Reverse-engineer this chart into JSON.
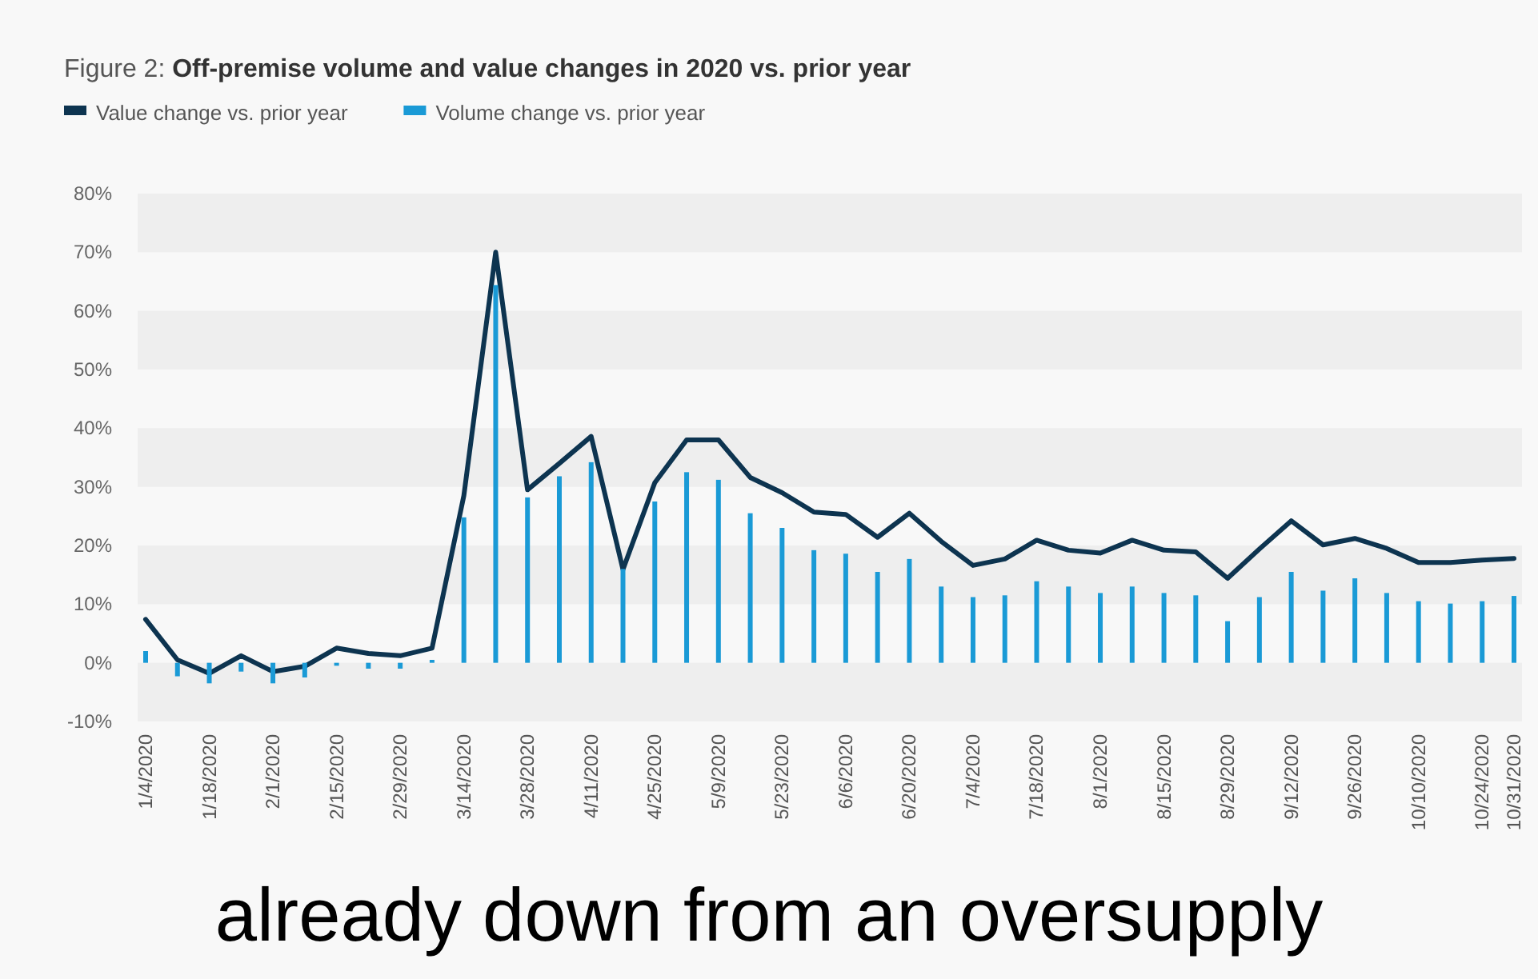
{
  "chart_data": {
    "type": "bar",
    "title": "Figure 2: Off-premise volume and value changes in 2020 vs. prior year",
    "categories": [
      "1/4/2020",
      null,
      "1/18/2020",
      null,
      "2/1/2020",
      null,
      "2/15/2020",
      null,
      "2/29/2020",
      null,
      "3/14/2020",
      null,
      "3/28/2020",
      null,
      "4/11/2020",
      null,
      "4/25/2020",
      null,
      "5/9/2020",
      null,
      "5/23/2020",
      null,
      "6/6/2020",
      null,
      "6/20/2020",
      null,
      "7/4/2020",
      null,
      "7/18/2020",
      null,
      "8/1/2020",
      null,
      "8/15/2020",
      null,
      "8/29/2020",
      null,
      "9/12/2020",
      null,
      "9/26/2020",
      null,
      "10/10/2020",
      null,
      "10/24/2020",
      "10/31/2020"
    ],
    "series": [
      {
        "name": "Value change vs. prior year",
        "type": "line",
        "color": "#0d3450",
        "values": [
          7.4,
          0.5,
          -1.8,
          1.2,
          -1.5,
          -0.6,
          2.5,
          1.6,
          1.2,
          2.5,
          28.5,
          70,
          29.5,
          34,
          38.6,
          15.9,
          30.7,
          38,
          38,
          31.6,
          29,
          25.7,
          25.3,
          21.4,
          25.5,
          20.7,
          16.6,
          17.7,
          20.9,
          19.2,
          18.7,
          20.9,
          19.2,
          18.9,
          14.4,
          19.4,
          24.2,
          20.1,
          21.2,
          19.5,
          17.1,
          17.1,
          17.5,
          17.8
        ]
      },
      {
        "name": "Volume change vs. prior year",
        "color": "#1a9ad6",
        "values": [
          2,
          -2.3,
          -3.5,
          -1.5,
          -3.5,
          -2.5,
          -0.5,
          -1,
          -1,
          0.5,
          24.8,
          64.4,
          28.2,
          31.8,
          34.2,
          16,
          27.5,
          32.5,
          31.2,
          25.5,
          23,
          19.2,
          18.6,
          15.5,
          17.7,
          13,
          11.2,
          11.5,
          13.9,
          13,
          11.9,
          13,
          11.9,
          11.5,
          7.1,
          11.2,
          15.5,
          12.3,
          14.4,
          11.9,
          10.5,
          10.1,
          10.5,
          11.4
        ]
      }
    ],
    "ylim": [
      -10,
      80
    ],
    "yticks": [
      {
        "value": -10,
        "label": "-10%"
      },
      {
        "value": 0,
        "label": "0%"
      },
      {
        "value": 10,
        "label": "10%"
      },
      {
        "value": 20,
        "label": "20%"
      },
      {
        "value": 30,
        "label": "30%"
      },
      {
        "value": 40,
        "label": "40%"
      },
      {
        "value": 50,
        "label": "50%"
      },
      {
        "value": 60,
        "label": "60%"
      },
      {
        "value": 70,
        "label": "70%"
      },
      {
        "value": 80,
        "label": "80%"
      }
    ],
    "legend": "top left",
    "marker": "none",
    "line_style": "solid",
    "annotations": [
      "already down from an oversupply"
    ]
  }
}
